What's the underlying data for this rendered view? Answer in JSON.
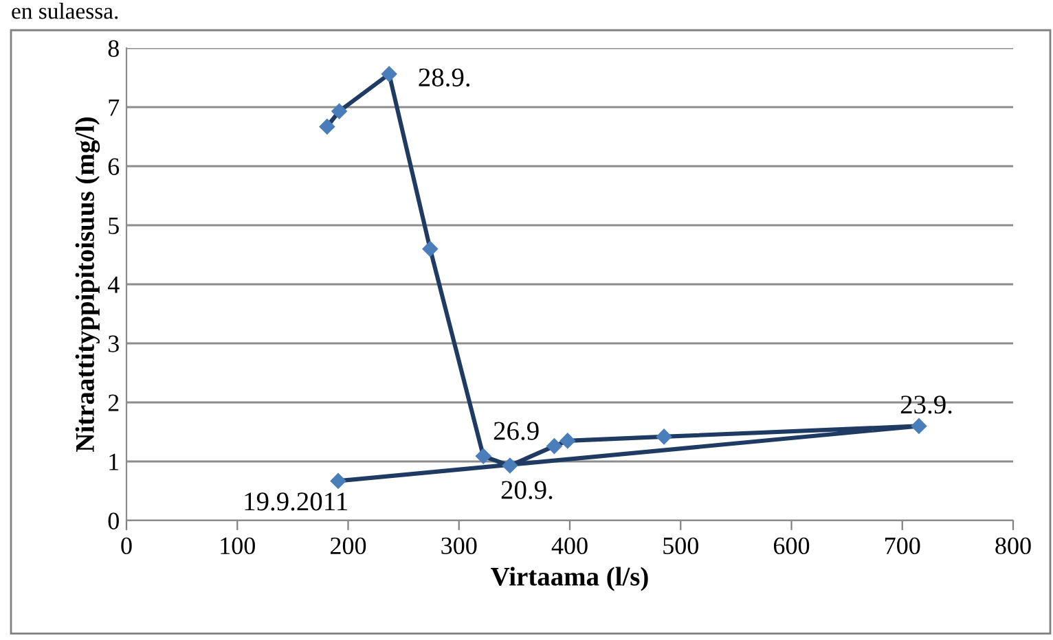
{
  "chart_data": {
    "type": "line",
    "xlabel": "Virtaama (l/s)",
    "ylabel": "Nitraattityppipitoisuus (mg/l)",
    "x": [
      191,
      715,
      485,
      398,
      386,
      346,
      322,
      274,
      237,
      192,
      181
    ],
    "series": [
      {
        "color": "#1f3b64",
        "values": [
          0.67,
          1.6,
          1.42,
          1.35,
          1.26,
          0.93,
          1.09,
          4.6,
          7.56,
          6.93,
          6.67
        ]
      }
    ],
    "marker": "diamond",
    "line_style": "solid",
    "grid": "y",
    "xlim": [
      0,
      800
    ],
    "xticks": [
      0,
      100,
      200,
      300,
      400,
      500,
      600,
      700,
      800
    ],
    "ylim": [
      0,
      8
    ],
    "yticks": [
      0,
      1,
      2,
      3,
      4,
      5,
      6,
      7,
      8
    ],
    "annotations": [
      "en sulaessa.",
      {
        "text": "28.9.",
        "x": 237,
        "y": 7.56
      },
      {
        "text": "26.9",
        "x": 322,
        "y": 1.09
      },
      {
        "text": "19.9.2011",
        "x": 191,
        "y": 0.67
      },
      {
        "text": "20.9.",
        "x": 346,
        "y": 0.93
      },
      {
        "text": "23.9.",
        "x": 715,
        "y": 1.6
      }
    ]
  }
}
